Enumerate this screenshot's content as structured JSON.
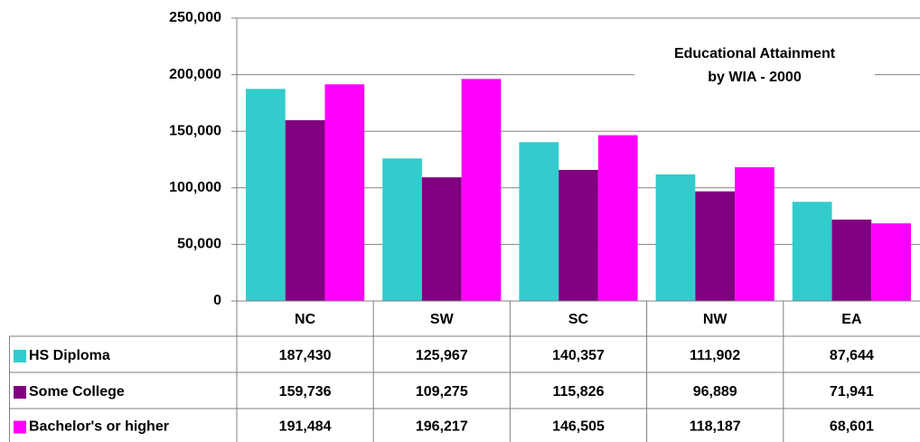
{
  "chart_data": {
    "type": "bar",
    "title": [
      "Educational Attainment",
      "by WIA - 2000"
    ],
    "categories": [
      "NC",
      "SW",
      "SC",
      "NW",
      "EA"
    ],
    "series": [
      {
        "name": "HS Diploma",
        "color": "#33cccc",
        "values": [
          187430,
          125967,
          140357,
          111902,
          87644
        ],
        "value_labels": [
          "187,430",
          "125,967",
          "140,357",
          "111,902",
          "87,644"
        ]
      },
      {
        "name": "Some College",
        "color": "#800080",
        "values": [
          159736,
          109275,
          115826,
          96889,
          71941
        ],
        "value_labels": [
          "159,736",
          "109,275",
          "115,826",
          "96,889",
          "71,941"
        ]
      },
      {
        "name": "Bachelor's or higher",
        "color": "#ff00ff",
        "values": [
          191484,
          196217,
          146505,
          118187,
          68601
        ],
        "value_labels": [
          "191,484",
          "196,217",
          "146,505",
          "118,187",
          "68,601"
        ]
      }
    ],
    "ylim": [
      0,
      250000
    ],
    "yticks": [
      0,
      {
        "value": 50000,
        "label": "50,000"
      },
      {
        "value": 100000,
        "label": "100,000"
      },
      {
        "value": 150000,
        "label": "150,000"
      },
      {
        "value": 200000,
        "label": "200,000"
      },
      {
        "value": 250000,
        "label": "250,000"
      }
    ],
    "grid": true
  }
}
